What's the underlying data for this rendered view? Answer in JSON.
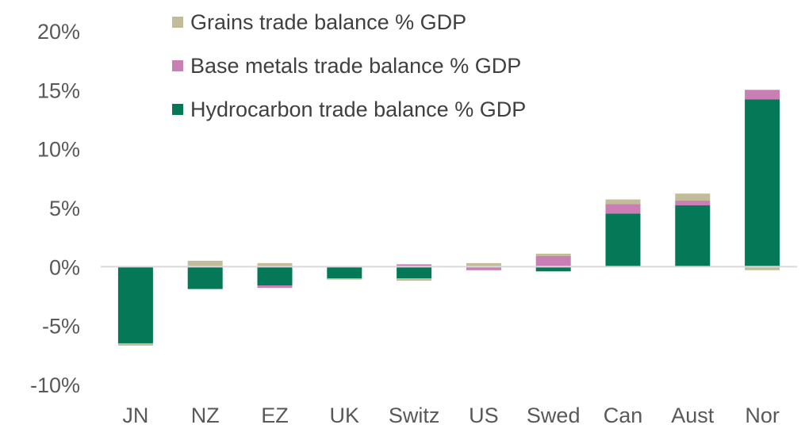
{
  "chart_data": {
    "type": "bar",
    "stacked": true,
    "title": "",
    "xlabel": "",
    "ylabel": "",
    "categories": [
      "JN",
      "NZ",
      "EZ",
      "UK",
      "Switz",
      "US",
      "Swed",
      "Can",
      "Aust",
      "Nor"
    ],
    "ylim": [
      -10,
      20
    ],
    "yticks": [
      -10,
      -5,
      0,
      5,
      10,
      15,
      20
    ],
    "ytick_labels": [
      "-10%",
      "-5%",
      "0%",
      "5%",
      "10%",
      "15%",
      "20%"
    ],
    "grid": false,
    "legend_position": "top-left",
    "series": [
      {
        "name": "Hydrocarbon trade balance % GDP",
        "color": "#047857",
        "values": [
          -6.5,
          -1.9,
          -1.6,
          -1.0,
          -1.0,
          0.0,
          -0.4,
          4.5,
          5.2,
          14.2
        ]
      },
      {
        "name": "Base metals trade balance % GDP",
        "color": "#C97EB4",
        "values": [
          0.0,
          0.0,
          -0.2,
          0.0,
          0.2,
          -0.3,
          0.9,
          0.8,
          0.4,
          0.8
        ]
      },
      {
        "name": "Grains trade balance % GDP",
        "color": "#C3BC9B",
        "values": [
          -0.2,
          0.5,
          0.3,
          -0.1,
          -0.2,
          0.3,
          0.2,
          0.4,
          0.6,
          -0.3
        ]
      }
    ],
    "legend_order": [
      2,
      1,
      0
    ]
  }
}
